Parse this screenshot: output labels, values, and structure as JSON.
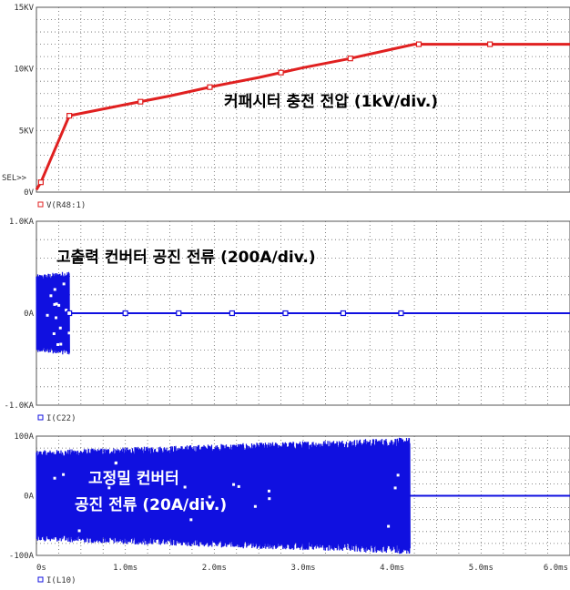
{
  "chart_data": {
    "type": "line",
    "xlim": [
      0,
      6.0
    ],
    "x_ticks": [
      {
        "x": 0,
        "label": "0s"
      },
      {
        "x": 1.0,
        "label": "1.0ms"
      },
      {
        "x": 2.0,
        "label": "2.0ms"
      },
      {
        "x": 3.0,
        "label": "3.0ms"
      },
      {
        "x": 4.0,
        "label": "4.0ms"
      },
      {
        "x": 5.0,
        "label": "5.0ms"
      },
      {
        "x": 6.0,
        "label": "6.0ms"
      }
    ],
    "grid": true,
    "panels": [
      {
        "legend": "V(R48:1)",
        "annotation": [
          "커패시터 충전 전압 (1kV/div.)"
        ],
        "ylim": [
          0,
          15
        ],
        "y_ticks": [
          {
            "y": 15,
            "label": "15KV"
          },
          {
            "y": 10,
            "label": "10KV"
          },
          {
            "y": 5,
            "label": "5KV"
          },
          {
            "y": 0,
            "label": "0V"
          }
        ],
        "marker_label": "SEL>>",
        "color": "#e02020",
        "series": [
          {
            "x": [
              0,
              0.05,
              0.37,
              1.0,
              1.5,
              2.0,
              2.5,
              3.0,
              3.5,
              4.0,
              4.25,
              5.0,
              6.0
            ],
            "y": [
              0.2,
              0.8,
              6.2,
              7.1,
              7.8,
              8.6,
              9.3,
              10.1,
              10.8,
              11.6,
              12.0,
              12.0,
              12.0
            ],
            "markers": [
              0.05,
              0.37,
              1.17,
              1.95,
              2.75,
              3.53,
              4.3,
              5.1
            ]
          }
        ]
      },
      {
        "legend": "I(C22)",
        "annotation": [
          "고출력 컨버터 공진 전류 (200A/div.)"
        ],
        "ylim": [
          -1.0,
          1.0
        ],
        "y_ticks": [
          {
            "y": 1.0,
            "label": "1.0KA"
          },
          {
            "y": 0,
            "label": "0A"
          },
          {
            "y": -1.0,
            "label": "-1.0KA"
          }
        ],
        "color": "#1010e0",
        "series": [
          {
            "x": [
              0.37,
              6.0
            ],
            "y": [
              0,
              0
            ],
            "markers": [
              0.37,
              1.0,
              1.6,
              2.2,
              2.8,
              3.45,
              4.1
            ]
          }
        ],
        "bursts": [
          {
            "x0": 0.0,
            "x1": 0.37,
            "amp_start": 0.42,
            "amp_end": 0.46
          }
        ]
      },
      {
        "legend": "I(L10)",
        "annotation": [
          "고정밀 컨버터",
          "공진 전류 (20A/div.)"
        ],
        "ylim": [
          -100,
          100
        ],
        "y_ticks": [
          {
            "y": 100,
            "label": "100A"
          },
          {
            "y": 0,
            "label": "0A"
          },
          {
            "y": -100,
            "label": "-100A"
          }
        ],
        "color": "#1010e0",
        "series": [
          {
            "x": [
              4.2,
              6.0
            ],
            "y": [
              0,
              0
            ],
            "markers": []
          }
        ],
        "bursts": [
          {
            "x0": 0.0,
            "x1": 4.2,
            "amp_start": 76,
            "amp_end": 98
          }
        ]
      }
    ]
  }
}
